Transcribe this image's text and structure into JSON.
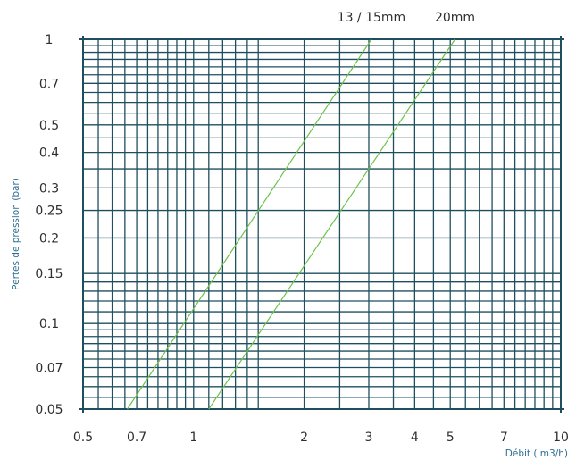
{
  "chart_data": {
    "type": "line",
    "xscale": "log",
    "yscale": "log",
    "xlim": [
      0.5,
      10
    ],
    "ylim": [
      0.05,
      1
    ],
    "grid": true,
    "xlabel": "Débit ( m3/h)",
    "ylabel": "Pertes de pression (bar)",
    "x_ticks": [
      0.5,
      0.7,
      1,
      2,
      3,
      4,
      5,
      7,
      10
    ],
    "x_tick_labels": [
      "0.5",
      "0.7",
      "1",
      "2",
      "3",
      "4",
      "5",
      "7",
      "10"
    ],
    "y_ticks": [
      1,
      0.7,
      0.5,
      0.4,
      0.3,
      0.25,
      0.2,
      0.15,
      0.1,
      0.07,
      0.05
    ],
    "y_tick_labels": [
      "1",
      "0.7",
      "0.5",
      "0.4",
      "0.3",
      "0.25",
      "0.2",
      "0.15",
      "0.1",
      "0.07",
      "0.05"
    ],
    "x_minor_grid": [
      0.55,
      0.6,
      0.65,
      0.7,
      0.75,
      0.8,
      0.85,
      0.9,
      0.95,
      1,
      1.1,
      1.2,
      1.3,
      1.4,
      1.5,
      2,
      2.5,
      3,
      3.5,
      4,
      4.5,
      5,
      5.5,
      6,
      6.5,
      7,
      7.5,
      8,
      8.5,
      9,
      9.5
    ],
    "y_minor_grid": [
      0.055,
      0.06,
      0.065,
      0.07,
      0.075,
      0.08,
      0.085,
      0.09,
      0.095,
      0.1,
      0.11,
      0.12,
      0.13,
      0.14,
      0.15,
      0.2,
      0.25,
      0.3,
      0.35,
      0.4,
      0.45,
      0.5,
      0.55,
      0.6,
      0.65,
      0.7,
      0.75,
      0.8,
      0.85,
      0.9,
      0.95
    ],
    "series": [
      {
        "name": "13 / 15mm",
        "color": "#6cc24a",
        "points": [
          [
            0.66,
            0.05
          ],
          [
            3.05,
            1
          ]
        ]
      },
      {
        "name": "20mm",
        "color": "#6cc24a",
        "points": [
          [
            1.1,
            0.05
          ],
          [
            5.15,
            1
          ]
        ]
      }
    ]
  },
  "colors": {
    "grid": "#1f4f5f",
    "line": "#6cc24a",
    "tick_text": "#2f2f2f",
    "axis_title": "#2f6f8f"
  }
}
